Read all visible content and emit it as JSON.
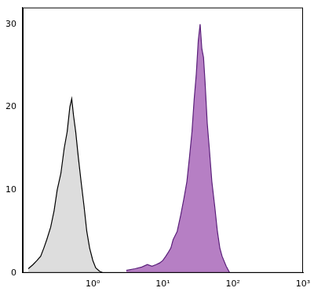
{
  "chart_data": {
    "type": "line",
    "log": "x",
    "grid": false,
    "xlim": [
      0.1,
      1000
    ],
    "xticks": [
      {
        "value": 1,
        "label": "10⁰"
      },
      {
        "value": 10,
        "label": "10¹"
      },
      {
        "value": 100,
        "label": "10²"
      },
      {
        "value": 1000,
        "label": "10³"
      }
    ],
    "ylim": [
      0,
      32
    ],
    "yticks": [
      0,
      10,
      20,
      30
    ],
    "series": [
      {
        "color": "#dddddd",
        "x": [
          0.12,
          0.14,
          0.16,
          0.18,
          0.2,
          0.22,
          0.25,
          0.28,
          0.31,
          0.35,
          0.39,
          0.43,
          0.47,
          0.5,
          0.53,
          0.57,
          0.62,
          0.68,
          0.75,
          0.82,
          0.9,
          1.0,
          1.1,
          1.25,
          1.4
        ],
        "values": [
          0.5,
          1,
          1.5,
          2,
          3,
          4,
          5.5,
          7.5,
          10,
          12,
          15,
          17,
          20,
          21,
          19,
          17,
          14,
          11,
          8,
          5,
          3,
          1.5,
          0.6,
          0.2,
          0
        ]
      },
      {
        "color": "#b67fc4",
        "x": [
          3,
          4,
          5,
          6,
          7,
          8,
          9,
          10,
          11,
          12,
          13,
          14,
          16,
          18,
          20,
          22,
          24,
          26,
          28,
          30,
          32,
          34,
          36,
          38,
          40,
          43,
          46,
          50,
          55,
          60,
          65,
          70,
          80,
          90
        ],
        "values": [
          0.3,
          0.5,
          0.7,
          1,
          0.8,
          1,
          1.2,
          1.5,
          2,
          2.5,
          3,
          4,
          5,
          7,
          9,
          11,
          14,
          17,
          21,
          24,
          28,
          30,
          27,
          26,
          23,
          18,
          15,
          11,
          8,
          5,
          3,
          2,
          0.8,
          0
        ]
      }
    ]
  }
}
